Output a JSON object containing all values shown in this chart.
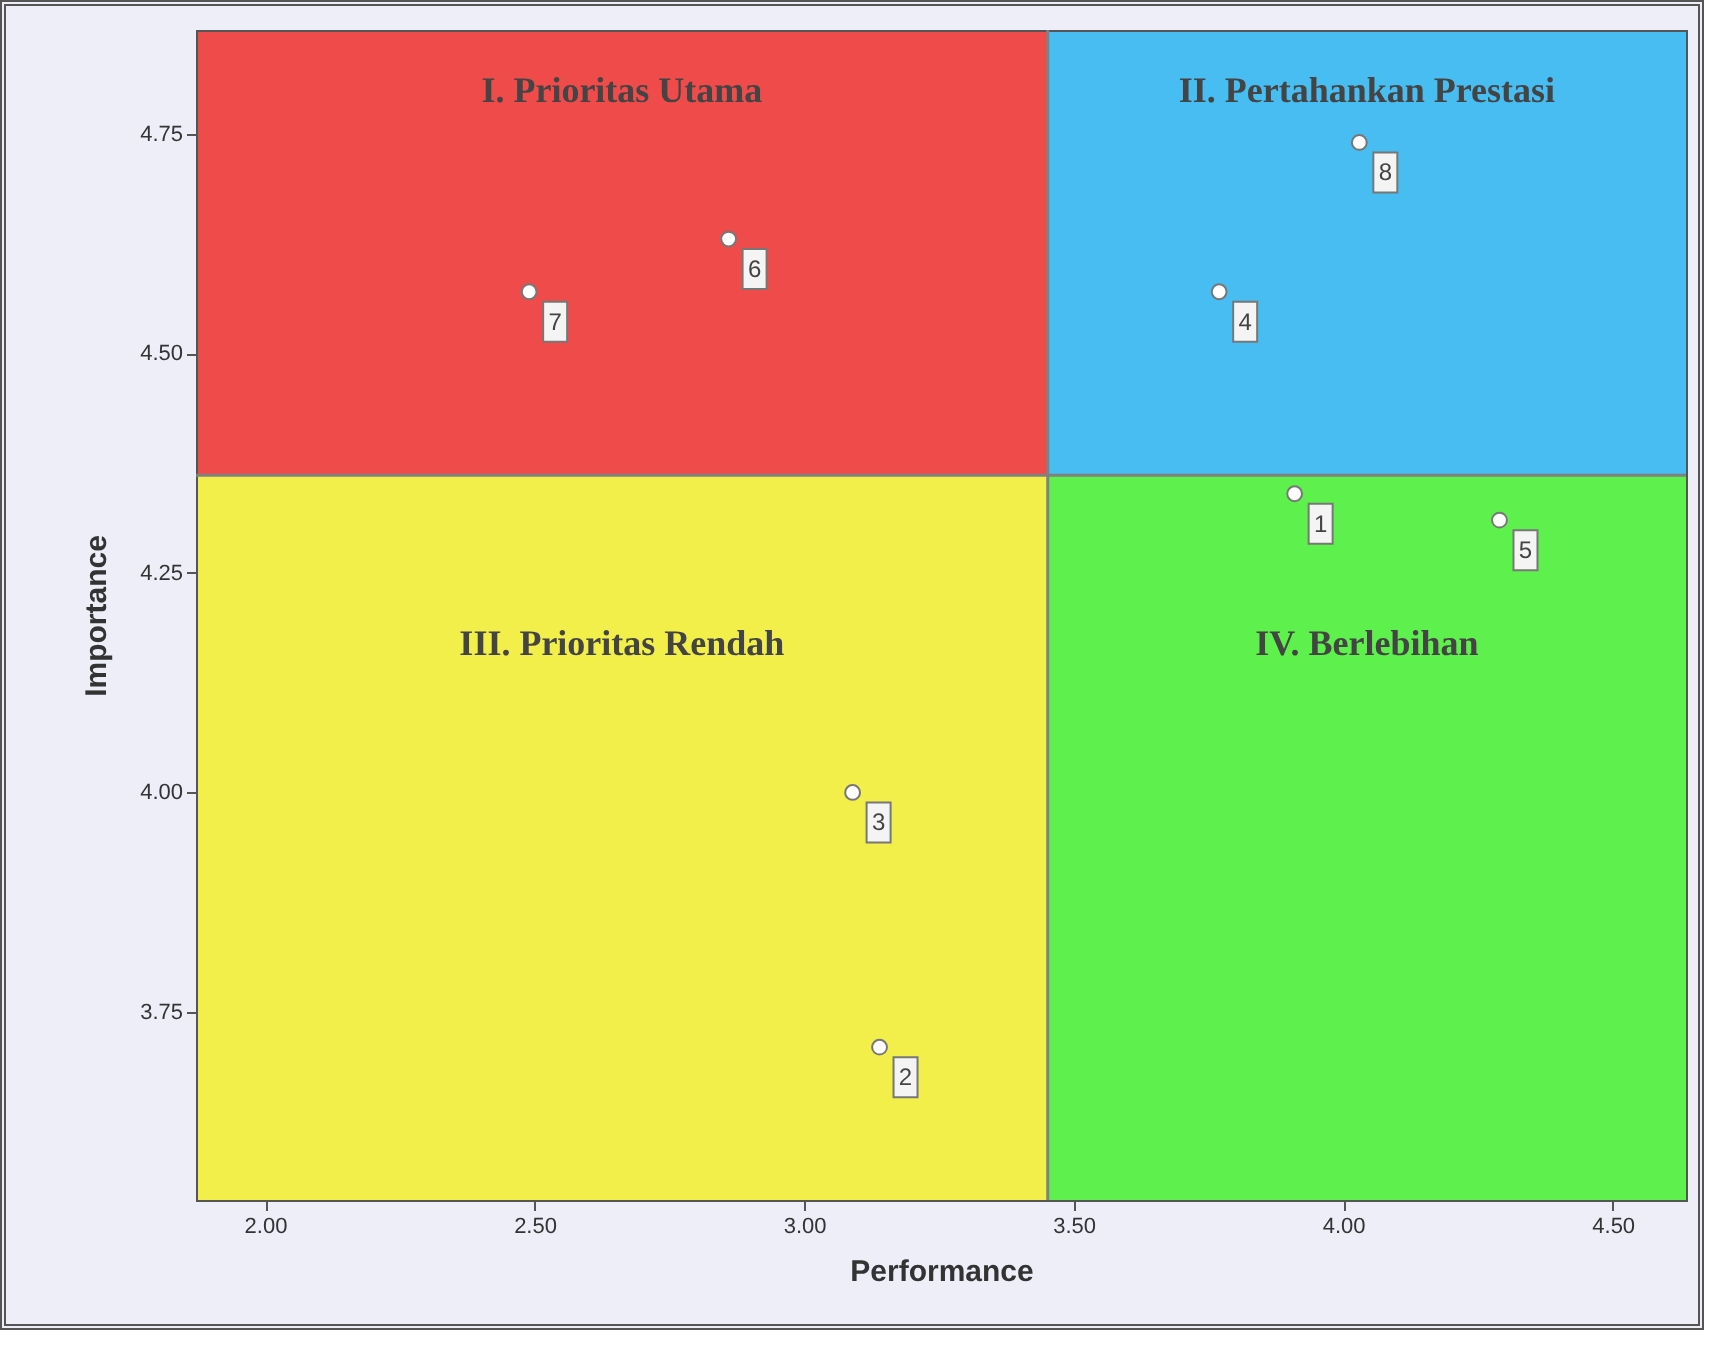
{
  "chart_data": {
    "type": "scatter",
    "xlabel": "Performance",
    "ylabel": "Importance",
    "xlim": [
      1.872,
      4.636
    ],
    "ylim": [
      3.536,
      4.868
    ],
    "xticks": [
      {
        "value": 2,
        "label": "2.00"
      },
      {
        "value": 2.5,
        "label": "2.50"
      },
      {
        "value": 3,
        "label": "3.00"
      },
      {
        "value": 3.5,
        "label": "3.50"
      },
      {
        "value": 4,
        "label": "4.00"
      },
      {
        "value": 4.5,
        "label": "4.50"
      }
    ],
    "yticks": [
      {
        "value": 3.75,
        "label": "3.75"
      },
      {
        "value": 4,
        "label": "4.00"
      },
      {
        "value": 4.25,
        "label": "4.25"
      },
      {
        "value": 4.5,
        "label": "4.50"
      },
      {
        "value": 4.75,
        "label": "4.75"
      }
    ],
    "series": [
      {
        "color": "#ffffff",
        "x": [
          3.91,
          3.14,
          3.09,
          3.77,
          4.29,
          2.86,
          2.49,
          4.03
        ],
        "values": [
          4.34,
          3.71,
          4.0,
          4.57,
          4.31,
          4.63,
          4.57,
          4.74
        ]
      }
    ],
    "marker": "circle",
    "grid": false,
    "ref_lines": [
      {
        "axis": "x",
        "value": 3.452,
        "color": "#808080"
      },
      {
        "axis": "y",
        "value": 4.361,
        "color": "#808080"
      }
    ],
    "annotations": [
      "I. Prioritas Utama",
      "II. Pertahankan Prestasi",
      "III. Prioritas Rendah",
      "IV. Berlebihan",
      {
        "text": "1",
        "x": 3.91,
        "y": 4.34
      },
      {
        "text": "2",
        "x": 3.14,
        "y": 3.71
      },
      {
        "text": "3",
        "x": 3.09,
        "y": 4.0
      },
      {
        "text": "4",
        "x": 3.77,
        "y": 4.57
      },
      {
        "text": "5",
        "x": 4.29,
        "y": 4.31
      },
      {
        "text": "6",
        "x": 2.86,
        "y": 4.63
      },
      {
        "text": "7",
        "x": 2.49,
        "y": 4.57
      },
      {
        "text": "8",
        "x": 4.03,
        "y": 4.74
      }
    ]
  }
}
